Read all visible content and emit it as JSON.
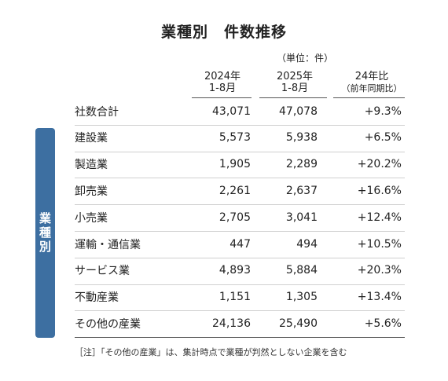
{
  "title": "業種別　件数推移",
  "unit": "（単位：件）",
  "side_label": "業種別",
  "headers": {
    "col_2024": [
      "2024年",
      "1-8月"
    ],
    "col_2025": [
      "2025年",
      "1-8月"
    ],
    "col_ratio": [
      "24年比",
      "（前年同期比）"
    ]
  },
  "rows": [
    {
      "name": "社数合計",
      "v2024": "43,071",
      "v2025": "47,078",
      "ratio": "+9.3%"
    },
    {
      "name": "建設業",
      "v2024": "5,573",
      "v2025": "5,938",
      "ratio": "+6.5%"
    },
    {
      "name": "製造業",
      "v2024": "1,905",
      "v2025": "2,289",
      "ratio": "+20.2%"
    },
    {
      "name": "卸売業",
      "v2024": "2,261",
      "v2025": "2,637",
      "ratio": "+16.6%"
    },
    {
      "name": "小売業",
      "v2024": "2,705",
      "v2025": "3,041",
      "ratio": "+12.4%"
    },
    {
      "name": "運輸・通信業",
      "v2024": "447",
      "v2025": "494",
      "ratio": "+10.5%"
    },
    {
      "name": "サービス業",
      "v2024": "4,893",
      "v2025": "5,884",
      "ratio": "+20.3%"
    },
    {
      "name": "不動産業",
      "v2024": "1,151",
      "v2025": "1,305",
      "ratio": "+13.4%"
    },
    {
      "name": "その他の産業",
      "v2024": "24,136",
      "v2025": "25,490",
      "ratio": "+5.6%"
    }
  ],
  "note": "［注］「その他の産業」は、集計時点で業種が判然としない企業を含む"
}
